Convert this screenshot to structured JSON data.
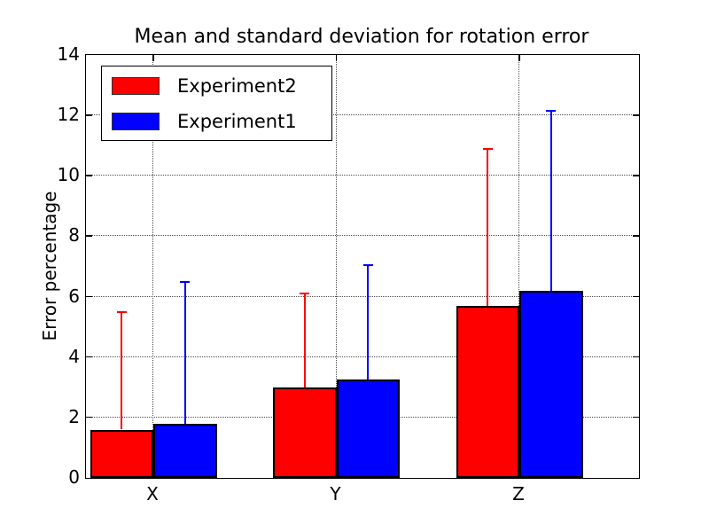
{
  "chart_data": {
    "type": "bar",
    "title": "Mean and standard deviation for rotation error",
    "ylabel": "Error percentage",
    "xlabel": "",
    "categories": [
      "X",
      "Y",
      "Z"
    ],
    "series": [
      {
        "name": "Experiment2",
        "color": "#ff0000",
        "means": [
          1.6,
          3.0,
          5.7
        ],
        "std": [
          3.9,
          3.1,
          5.2
        ]
      },
      {
        "name": "Experiment1",
        "color": "#0000ff",
        "means": [
          1.8,
          3.25,
          6.2
        ],
        "std": [
          4.7,
          3.8,
          5.95
        ]
      }
    ],
    "ylim": [
      0,
      14
    ],
    "yticks": [
      0,
      2,
      4,
      6,
      8,
      10,
      12,
      14
    ],
    "grid": true,
    "grid_style": "dotted",
    "error_bars": "upper",
    "legend_position": "upper left",
    "bar_edge_color": "#000000",
    "background_color": "#ffffff"
  }
}
